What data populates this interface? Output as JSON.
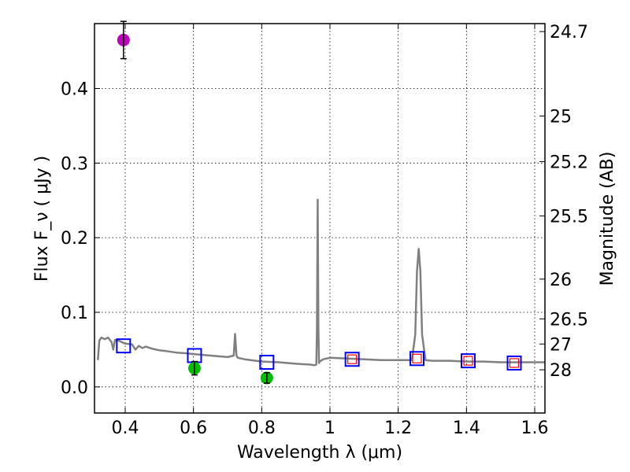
{
  "chart_data": {
    "type": "scatter",
    "xlabel": "Wavelength  λ (μm)",
    "ylabel": "Flux  F_ν  ( μJy )",
    "ylabel_right": "Magnitude (AB)",
    "xlim": [
      0.31,
      1.63
    ],
    "ylim": [
      -0.035,
      0.487
    ],
    "x_ticks": [
      0.4,
      0.6,
      0.8,
      1.0,
      1.2,
      1.4,
      1.6
    ],
    "x_tick_labels": [
      "0.4",
      "0.6",
      "0.8",
      "1",
      "1.2",
      "1.4",
      "1.6"
    ],
    "y_ticks": [
      0.0,
      0.1,
      0.2,
      0.3,
      0.4
    ],
    "y_tick_labels": [
      "0.0",
      "0.1",
      "0.2",
      "0.3",
      "0.4"
    ],
    "right_ticks": [
      {
        "label": "24.7",
        "flux": 0.4763
      },
      {
        "label": "25",
        "flux": 0.3631
      },
      {
        "label": "25.2",
        "flux": 0.302
      },
      {
        "label": "25.5",
        "flux": 0.2291
      },
      {
        "label": "26",
        "flux": 0.1445
      },
      {
        "label": "26.5",
        "flux": 0.0912
      },
      {
        "label": "27",
        "flux": 0.0575
      },
      {
        "label": "28",
        "flux": 0.0229
      }
    ],
    "grid": true,
    "colors": {
      "model": "#808080",
      "photometry_box": "#0000ff",
      "model_box": "#ff0000",
      "u_point": "#bf00bf",
      "opt_points": "#00bf00",
      "errorbar": "#000000"
    },
    "series": [
      {
        "name": "model spectrum",
        "kind": "line",
        "x": [
          0.32,
          0.324,
          0.33,
          0.34,
          0.35,
          0.36,
          0.365,
          0.37,
          0.38,
          0.39,
          0.4,
          0.42,
          0.43,
          0.44,
          0.45,
          0.46,
          0.48,
          0.5,
          0.52,
          0.55,
          0.58,
          0.6,
          0.65,
          0.7,
          0.718,
          0.722,
          0.726,
          0.73,
          0.75,
          0.8,
          0.85,
          0.9,
          0.94,
          0.955,
          0.96,
          0.962,
          0.964,
          0.966,
          0.968,
          0.97,
          0.98,
          1.0,
          1.05,
          1.1,
          1.15,
          1.2,
          1.24,
          1.25,
          1.255,
          1.26,
          1.265,
          1.27,
          1.28,
          1.3,
          1.35,
          1.4,
          1.45,
          1.5,
          1.55,
          1.6,
          1.63
        ],
        "y": [
          0.036,
          0.062,
          0.066,
          0.064,
          0.066,
          0.06,
          0.05,
          0.063,
          0.062,
          0.06,
          0.058,
          0.057,
          0.05,
          0.055,
          0.052,
          0.054,
          0.051,
          0.049,
          0.048,
          0.046,
          0.045,
          0.044,
          0.042,
          0.04,
          0.042,
          0.071,
          0.042,
          0.039,
          0.037,
          0.034,
          0.033,
          0.031,
          0.03,
          0.029,
          0.03,
          0.08,
          0.251,
          0.08,
          0.032,
          0.034,
          0.037,
          0.039,
          0.038,
          0.037,
          0.036,
          0.036,
          0.036,
          0.07,
          0.155,
          0.185,
          0.155,
          0.07,
          0.036,
          0.035,
          0.035,
          0.034,
          0.034,
          0.033,
          0.033,
          0.033,
          0.033
        ]
      },
      {
        "name": "observed photometry",
        "kind": "open-square",
        "x": [
          0.395,
          0.603,
          0.815,
          1.065,
          1.255,
          1.405,
          1.54
        ],
        "y": [
          0.055,
          0.042,
          0.033,
          0.037,
          0.038,
          0.035,
          0.032
        ]
      },
      {
        "name": "model photometry",
        "kind": "open-square-small",
        "x": [
          1.065,
          1.255,
          1.405,
          1.54
        ],
        "y": [
          0.037,
          0.038,
          0.035,
          0.032
        ]
      },
      {
        "name": "u-band flux",
        "kind": "filled-circle",
        "x": [
          0.395
        ],
        "y": [
          0.465
        ],
        "yerr": [
          0.025
        ]
      },
      {
        "name": "optical fluxes",
        "kind": "filled-circle",
        "x": [
          0.603,
          0.815
        ],
        "y": [
          0.025,
          0.012
        ],
        "yerr": [
          0.009,
          0.007
        ]
      }
    ]
  }
}
